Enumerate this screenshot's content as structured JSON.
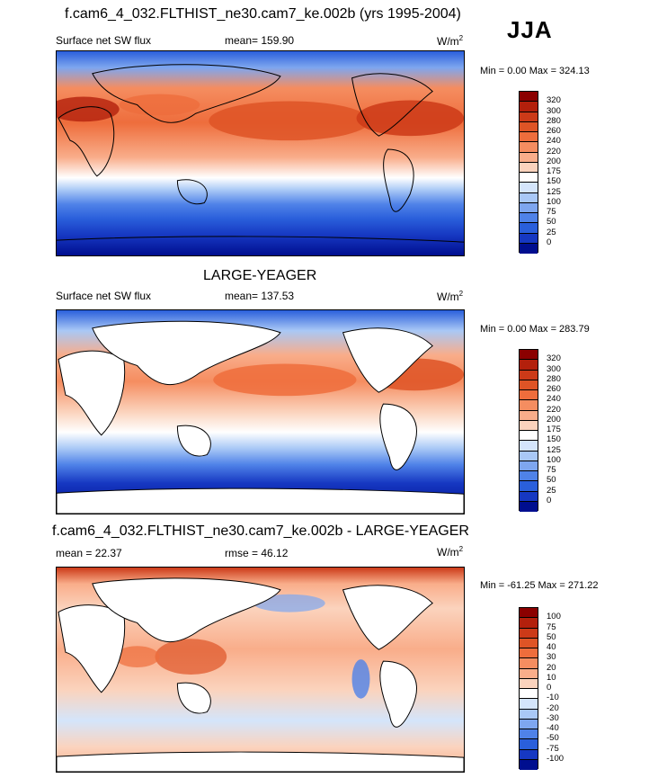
{
  "season": "JJA",
  "panels": [
    {
      "title": "f.cam6_4_032.FLTHIST_ne30.cam7_ke.002b (yrs 1995-2004)",
      "left_label": "Surface net SW flux",
      "center_label": "mean= 159.90",
      "units_base": "W/m",
      "units_exp": "2",
      "minmax": "Min =   0.00 Max = 324.13",
      "colorbar_labels": [
        "320",
        "300",
        "280",
        "260",
        "240",
        "220",
        "200",
        "175",
        "150",
        "125",
        "100",
        "75",
        "50",
        "25",
        "0"
      ],
      "colorbar_colors": [
        "#8b0000",
        "#b3200c",
        "#cc3a18",
        "#de5426",
        "#ee6d3c",
        "#f58d60",
        "#f9ad8a",
        "#fbd3bd",
        "#ffffff",
        "#d4e5fb",
        "#a9c8f6",
        "#7ea6ef",
        "#4f82e8",
        "#2a5fdb",
        "#1638c2",
        "#000e8f"
      ]
    },
    {
      "title": "LARGE-YEAGER",
      "left_label": "Surface net SW flux",
      "center_label": "mean= 137.53",
      "units_base": "W/m",
      "units_exp": "2",
      "minmax": "Min =   0.00 Max = 283.79",
      "colorbar_labels": [
        "320",
        "300",
        "280",
        "260",
        "240",
        "220",
        "200",
        "175",
        "150",
        "125",
        "100",
        "75",
        "50",
        "25",
        "0"
      ],
      "colorbar_colors": [
        "#8b0000",
        "#b3200c",
        "#cc3a18",
        "#de5426",
        "#ee6d3c",
        "#f58d60",
        "#f9ad8a",
        "#fbd3bd",
        "#ffffff",
        "#d4e5fb",
        "#a9c8f6",
        "#7ea6ef",
        "#4f82e8",
        "#2a5fdb",
        "#1638c2",
        "#000e8f"
      ]
    },
    {
      "title": "f.cam6_4_032.FLTHIST_ne30.cam7_ke.002b - LARGE-YEAGER",
      "left_label": "mean =  22.37",
      "center_label": "rmse =  46.12",
      "units_base": "W/m",
      "units_exp": "2",
      "minmax": "Min = -61.25 Max = 271.22",
      "colorbar_labels": [
        "100",
        "75",
        "50",
        "40",
        "30",
        "20",
        "10",
        "0",
        "-10",
        "-20",
        "-30",
        "-40",
        "-50",
        "-75",
        "-100"
      ],
      "colorbar_colors": [
        "#8b0000",
        "#b3200c",
        "#cc3a18",
        "#de5426",
        "#ee6d3c",
        "#f58d60",
        "#f9ad8a",
        "#fbd3bd",
        "#ffffff",
        "#d4e5fb",
        "#a9c8f6",
        "#7ea6ef",
        "#4f82e8",
        "#2a5fdb",
        "#1638c2",
        "#000e8f"
      ]
    }
  ]
}
